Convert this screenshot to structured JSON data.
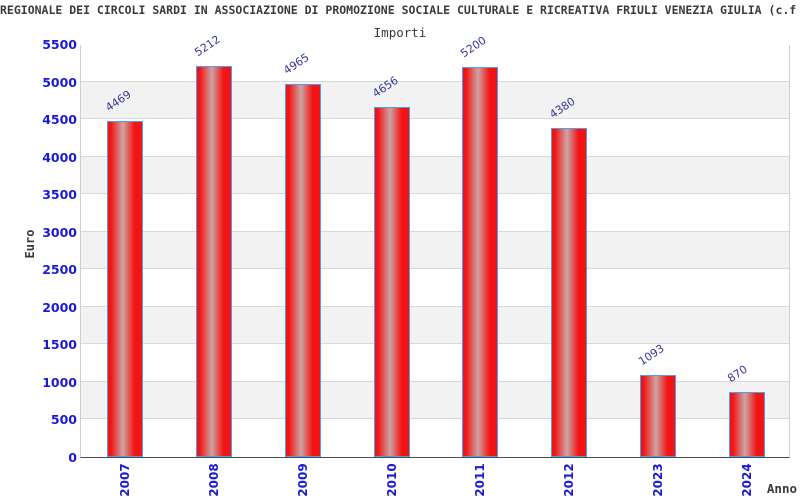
{
  "header": {
    "title": "REGIONALE DEI CIRCOLI SARDI IN ASSOCIAZIONE DI PROMOZIONE SOCIALE CULTURALE E RICREATIVA FRIULI VENEZIA GIULIA (c.f",
    "subtitle": "Importi"
  },
  "chart_data": {
    "type": "bar",
    "title": "Importi",
    "categories": [
      "2007",
      "2008",
      "2009",
      "2010",
      "2011",
      "2012",
      "2023",
      "2024"
    ],
    "values": [
      4469,
      5212,
      4965,
      4656,
      5200,
      4380,
      1093,
      870
    ],
    "xlabel": "Anno",
    "ylabel": "Euro",
    "ylim": [
      0,
      5500
    ],
    "ytick_step": 500,
    "ytick_labels": [
      "0",
      "500",
      "1000",
      "1500",
      "2000",
      "2500",
      "3000",
      "3500",
      "4000",
      "4500",
      "5000",
      "5500"
    ],
    "grid": true,
    "legend": "none",
    "colors": {
      "bar_red": "#f21414",
      "bar_mid_light": "#cda4a4",
      "bar_border": "#4f9ded",
      "axis_label_blue": "#1a1ad6",
      "value_label_blue": "#36379b",
      "band_gray": "#f2f2f2",
      "band_white": "#ffffff",
      "gridline_gray": "#d9d9d9",
      "axis_dark": "#4a4a4a",
      "text_dark": "#3a3a3a"
    }
  }
}
